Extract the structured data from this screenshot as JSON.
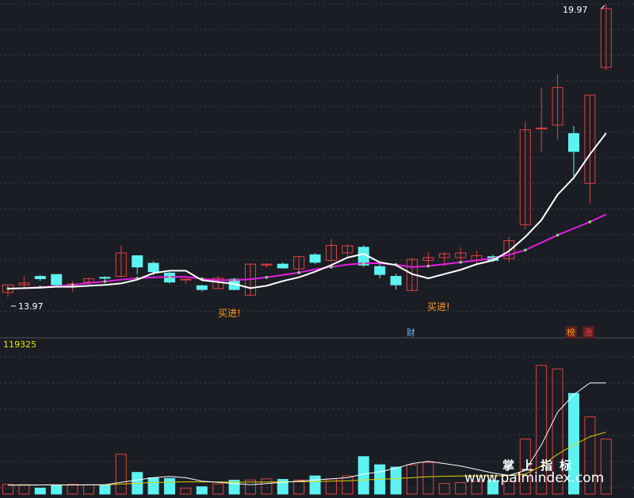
{
  "colors": {
    "background": "#1b1d24",
    "up": "#e04141",
    "down": "#5df2f2",
    "ma_short": "#ffffff",
    "ma_long": "#e41ee4",
    "ma_dots": "#7ae06e",
    "vol_ma_short": "#ffffff",
    "vol_ma_long": "#e6d000",
    "buy_text": "#ff9a1f",
    "grid": "#3a3e4a"
  },
  "labels": {
    "price_high": "19.97",
    "price_low": "13.97",
    "volume_max": "119325",
    "buy_signal": "买进!",
    "tag_cai": "财",
    "tag_bang": "榜",
    "tag_zhang": "涨",
    "watermark_title": "掌上指标",
    "watermark_url": "www.palmindex.com"
  },
  "chart_data": {
    "type": "candlestick",
    "y_range": [
      13.6,
      20.1
    ],
    "volume_range": [
      0,
      119325
    ],
    "buy_signal_indices": [
      11,
      24
    ],
    "candles": [
      {
        "o": 13.96,
        "c": 14.12,
        "h": 14.12,
        "l": 13.86,
        "v": 8200
      },
      {
        "o": 14.12,
        "c": 14.16,
        "h": 14.3,
        "l": 14.05,
        "v": 8000
      },
      {
        "o": 14.3,
        "c": 14.25,
        "h": 14.33,
        "l": 14.2,
        "v": 5100
      },
      {
        "o": 14.34,
        "c": 14.12,
        "h": 14.34,
        "l": 14.1,
        "v": 7300
      },
      {
        "o": 14.08,
        "c": 14.14,
        "h": 14.2,
        "l": 13.98,
        "v": 8300
      },
      {
        "o": 14.18,
        "c": 14.25,
        "h": 14.28,
        "l": 14.12,
        "v": 7900
      },
      {
        "o": 14.28,
        "c": 14.26,
        "h": 14.3,
        "l": 14.18,
        "v": 7600
      },
      {
        "o": 14.3,
        "c": 14.8,
        "h": 14.96,
        "l": 14.28,
        "v": 34000
      },
      {
        "o": 14.74,
        "c": 14.5,
        "h": 14.75,
        "l": 14.35,
        "v": 18500
      },
      {
        "o": 14.58,
        "c": 14.4,
        "h": 14.62,
        "l": 14.32,
        "v": 13900
      },
      {
        "o": 14.37,
        "c": 14.18,
        "h": 14.4,
        "l": 14.15,
        "v": 13300
      },
      {
        "o": 14.24,
        "c": 14.24,
        "h": 14.25,
        "l": 14.14,
        "v": 5000
      },
      {
        "o": 14.1,
        "c": 14.02,
        "h": 14.12,
        "l": 13.98,
        "v": 6200
      },
      {
        "o": 14.04,
        "c": 14.26,
        "h": 14.32,
        "l": 14.04,
        "v": 8600
      },
      {
        "o": 14.24,
        "c": 14.02,
        "h": 14.26,
        "l": 14.0,
        "v": 11800
      },
      {
        "o": 13.9,
        "c": 14.56,
        "h": 14.58,
        "l": 13.9,
        "v": 12000
      },
      {
        "o": 14.54,
        "c": 14.56,
        "h": 14.58,
        "l": 14.48,
        "v": 13000
      },
      {
        "o": 14.56,
        "c": 14.48,
        "h": 14.6,
        "l": 14.46,
        "v": 12500
      },
      {
        "o": 14.46,
        "c": 14.72,
        "h": 14.74,
        "l": 14.4,
        "v": 12000
      },
      {
        "o": 14.76,
        "c": 14.6,
        "h": 14.8,
        "l": 14.56,
        "v": 15500
      },
      {
        "o": 14.64,
        "c": 14.96,
        "h": 15.1,
        "l": 14.62,
        "v": 13000
      },
      {
        "o": 14.8,
        "c": 14.95,
        "h": 14.98,
        "l": 14.7,
        "v": 15500
      },
      {
        "o": 14.92,
        "c": 14.54,
        "h": 14.96,
        "l": 14.5,
        "v": 32000
      },
      {
        "o": 14.51,
        "c": 14.34,
        "h": 14.58,
        "l": 14.26,
        "v": 25000
      },
      {
        "o": 14.3,
        "c": 14.12,
        "h": 14.36,
        "l": 14.02,
        "v": 23000
      },
      {
        "o": 14.0,
        "c": 14.66,
        "h": 14.7,
        "l": 14.0,
        "v": 25000
      },
      {
        "o": 14.64,
        "c": 14.7,
        "h": 14.82,
        "l": 14.54,
        "v": 27000
      },
      {
        "o": 14.7,
        "c": 14.78,
        "h": 14.82,
        "l": 14.52,
        "v": 9000
      },
      {
        "o": 14.7,
        "c": 14.8,
        "h": 14.92,
        "l": 14.6,
        "v": 9800
      },
      {
        "o": 14.64,
        "c": 14.74,
        "h": 14.84,
        "l": 14.55,
        "v": 10800
      },
      {
        "o": 14.72,
        "c": 14.64,
        "h": 14.76,
        "l": 14.6,
        "v": 11600
      },
      {
        "o": 14.68,
        "c": 15.06,
        "h": 15.14,
        "l": 14.6,
        "v": 10500
      },
      {
        "o": 15.4,
        "c": 17.42,
        "h": 17.6,
        "l": 15.3,
        "v": 47000
      },
      {
        "o": 17.44,
        "c": 17.46,
        "h": 18.32,
        "l": 16.96,
        "v": 110000
      },
      {
        "o": 17.52,
        "c": 18.32,
        "h": 18.6,
        "l": 17.22,
        "v": 107000
      },
      {
        "o": 17.34,
        "c": 16.96,
        "h": 17.5,
        "l": 16.38,
        "v": 86000
      },
      {
        "o": 16.28,
        "c": 18.16,
        "h": 18.16,
        "l": 15.85,
        "v": 66000
      },
      {
        "o": 18.75,
        "c": 20.0,
        "h": 20.1,
        "l": 18.69,
        "v": 47000
      }
    ],
    "ma_short": [
      14.04,
      14.05,
      14.06,
      14.08,
      14.08,
      14.1,
      14.12,
      14.15,
      14.23,
      14.37,
      14.42,
      14.42,
      14.22,
      14.18,
      14.14,
      14.05,
      14.1,
      14.2,
      14.28,
      14.4,
      14.54,
      14.7,
      14.78,
      14.6,
      14.54,
      14.35,
      14.26,
      14.35,
      14.44,
      14.56,
      14.64,
      14.84,
      15.14,
      15.5,
      16.04,
      16.4,
      16.9,
      17.35
    ],
    "ma_long": [
      14.04,
      14.05,
      14.07,
      14.09,
      14.12,
      14.16,
      14.19,
      14.23,
      14.26,
      14.28,
      14.29,
      14.29,
      14.25,
      14.22,
      14.22,
      14.24,
      14.28,
      14.33,
      14.38,
      14.45,
      14.5,
      14.55,
      14.58,
      14.58,
      14.55,
      14.5,
      14.52,
      14.56,
      14.6,
      14.64,
      14.69,
      14.76,
      14.86,
      15.02,
      15.18,
      15.32,
      15.46,
      15.62
    ],
    "vol_ma_short": [
      7600,
      7700,
      7800,
      7900,
      7800,
      7900,
      8000,
      10000,
      12000,
      14000,
      15000,
      14000,
      11000,
      10000,
      9000,
      8000,
      9000,
      10000,
      11000,
      12000,
      13000,
      14000,
      17000,
      19000,
      22000,
      26000,
      28000,
      26000,
      24000,
      21000,
      18000,
      16000,
      20000,
      42000,
      70000,
      85000,
      95000,
      95000
    ],
    "vol_ma_long": [
      7600,
      7600,
      7700,
      7700,
      7700,
      7800,
      7800,
      8500,
      9200,
      9800,
      10200,
      10400,
      10300,
      10300,
      10200,
      10200,
      10300,
      10400,
      10500,
      10700,
      11000,
      11300,
      12000,
      12600,
      13200,
      14000,
      14800,
      15200,
      15400,
      15500,
      15600,
      15700,
      17000,
      24000,
      34000,
      42000,
      49000,
      53000
    ]
  }
}
